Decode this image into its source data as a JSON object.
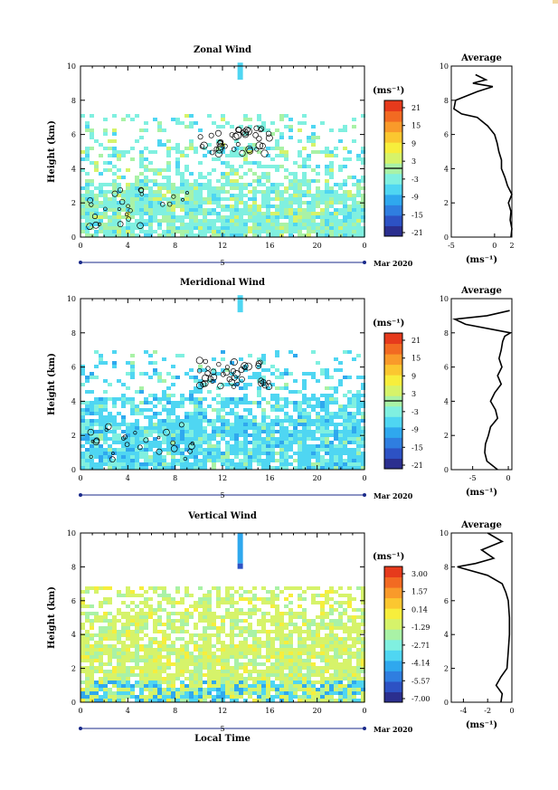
{
  "x_ticks": [
    "0",
    "4",
    "8",
    "12",
    "16",
    "20",
    "0"
  ],
  "y_ticks": [
    "0",
    "2",
    "4",
    "6",
    "8",
    "10"
  ],
  "ylabel": "Height (km)",
  "day_label": "5",
  "date_label": "Mar 2020",
  "xlabel_bottom": "Local Time",
  "cb_unit": "(ms⁻¹)",
  "avg_title": "Average",
  "avg_unit": "(ms⁻¹)",
  "colormap": [
    "#2b2f8f",
    "#2d52c4",
    "#2f7ee0",
    "#2fa8ee",
    "#4fd6f2",
    "#80f0e0",
    "#a9f2a6",
    "#d6f36a",
    "#f7ee3c",
    "#fbc730",
    "#f99a2a",
    "#f26a22",
    "#e63a1c"
  ],
  "chart_data": [
    {
      "type": "heatmap",
      "title": "Zonal Wind",
      "xlabel": "",
      "ylabel": "Height (km)",
      "xlim": [
        0,
        24
      ],
      "ylim": [
        0,
        10
      ],
      "colorbar_ticks": [
        "21",
        "15",
        "9",
        "3",
        "-3",
        "-9",
        "-15",
        "-21"
      ],
      "colorbar_range": [
        -24,
        24
      ],
      "zero_line": true,
      "dominant_values": "mostly 0 to 6 ms-1 (cyan-green) from 0 to about 7 km",
      "average_profile": {
        "xlim": [
          -5,
          2
        ],
        "xticks": [
          "-5",
          "0",
          "2"
        ],
        "height_km": [
          0,
          0.5,
          1,
          1.5,
          2,
          2.5,
          3,
          3.5,
          4,
          4.5,
          5,
          5.5,
          6,
          6.5,
          7,
          7.2,
          7.5,
          8,
          8.5,
          8.8,
          9,
          9.2,
          9.5
        ],
        "wind_ms": [
          1.9,
          2.0,
          1.8,
          1.9,
          1.6,
          2.1,
          1.5,
          1.2,
          0.8,
          0.8,
          0.5,
          0.3,
          0.0,
          -0.8,
          -2.0,
          -3.8,
          -4.7,
          -4.5,
          -2.0,
          -0.2,
          -2.5,
          -1.0,
          -2.2
        ]
      }
    },
    {
      "type": "heatmap",
      "title": "Meridional Wind",
      "xlabel": "",
      "ylabel": "Height (km)",
      "xlim": [
        0,
        24
      ],
      "ylim": [
        0,
        10
      ],
      "colorbar_ticks": [
        "21",
        "15",
        "9",
        "3",
        "-3",
        "-9",
        "-15",
        "-21"
      ],
      "colorbar_range": [
        -24,
        24
      ],
      "zero_line": true,
      "dominant_values": "mostly -6 to 0 ms-1 (light blue) from 0 to about 7 km",
      "average_profile": {
        "xlim": [
          -8,
          0.5
        ],
        "xticks": [
          "-5",
          "0"
        ],
        "height_km": [
          0,
          0.5,
          1,
          1.5,
          2,
          2.5,
          3,
          3.5,
          4,
          4.5,
          5,
          5.5,
          6,
          6.5,
          7,
          7.5,
          7.8,
          8,
          8.5,
          8.8,
          9,
          9.3
        ],
        "wind_ms": [
          -1.5,
          -3.0,
          -3.3,
          -3.2,
          -2.8,
          -2.5,
          -1.5,
          -1.8,
          -2.5,
          -1.9,
          -1.0,
          -1.5,
          -0.9,
          -1.3,
          -1.0,
          -0.8,
          -0.5,
          0.3,
          -6.0,
          -7.5,
          -3.0,
          0.2
        ]
      }
    },
    {
      "type": "heatmap",
      "title": "Vertical Wind",
      "xlabel": "Local Time",
      "ylabel": "Height (km)",
      "xlim": [
        0,
        24
      ],
      "ylim": [
        0,
        10
      ],
      "colorbar_ticks": [
        "3.00",
        "1.57",
        "0.14",
        "-1.29",
        "-2.71",
        "-4.14",
        "-5.57",
        "-7.00"
      ],
      "colorbar_range": [
        -8,
        4
      ],
      "zero_line": false,
      "dominant_values": "mostly -1 to 0.5 ms-1 (yellow-green) from 0 to about 7 km",
      "average_profile": {
        "xlim": [
          -5,
          0
        ],
        "xticks": [
          "-4",
          "-2",
          "0"
        ],
        "height_km": [
          0,
          0.5,
          1,
          1.5,
          2,
          3,
          4,
          5,
          6,
          6.5,
          7,
          7.5,
          8,
          8.2,
          8.5,
          9,
          9.5,
          10
        ],
        "wind_ms": [
          -0.9,
          -0.8,
          -1.3,
          -0.9,
          -0.4,
          -0.3,
          -0.2,
          -0.2,
          -0.3,
          -0.5,
          -0.8,
          -2.0,
          -4.5,
          -3.0,
          -1.5,
          -2.5,
          -0.8,
          -2.0
        ]
      }
    }
  ]
}
